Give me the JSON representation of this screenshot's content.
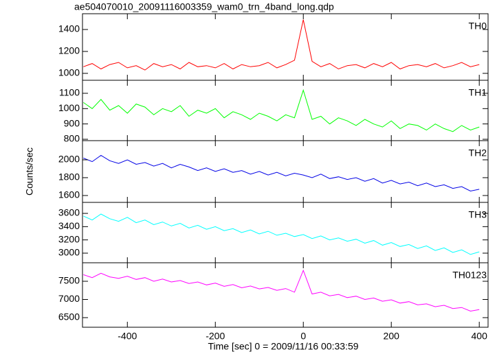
{
  "chart_data": [
    {
      "type": "line",
      "title": "ae504070010_20091116003359_wam0_trn_4band_long.qdp",
      "label": "TH0",
      "color": "#ff0000",
      "xlim": [
        -502,
        420
      ],
      "ylim": [
        937,
        1544
      ],
      "yticks": [
        1000,
        1200,
        1400
      ],
      "x": [
        -500,
        -480,
        -460,
        -440,
        -420,
        -400,
        -380,
        -360,
        -340,
        -320,
        -300,
        -280,
        -260,
        -240,
        -220,
        -200,
        -180,
        -160,
        -140,
        -120,
        -100,
        -80,
        -60,
        -40,
        -20,
        0,
        20,
        40,
        60,
        80,
        100,
        120,
        140,
        160,
        180,
        200,
        220,
        240,
        260,
        280,
        300,
        320,
        340,
        360,
        380,
        400
      ],
      "values": [
        1060,
        1090,
        1040,
        1080,
        1100,
        1050,
        1070,
        1030,
        1090,
        1060,
        1080,
        1040,
        1100,
        1060,
        1070,
        1050,
        1090,
        1040,
        1080,
        1060,
        1070,
        1100,
        1050,
        1080,
        1120,
        1490,
        1110,
        1060,
        1090,
        1040,
        1070,
        1080,
        1050,
        1090,
        1060,
        1100,
        1040,
        1070,
        1080,
        1060,
        1090,
        1050,
        1070,
        1100,
        1060,
        1080
      ]
    },
    {
      "type": "line",
      "label": "TH1",
      "color": "#00ff00",
      "xlim": [
        -502,
        420
      ],
      "ylim": [
        791,
        1185
      ],
      "yticks": [
        800,
        900,
        1000,
        1100
      ],
      "x": [
        -500,
        -480,
        -460,
        -440,
        -420,
        -400,
        -380,
        -360,
        -340,
        -320,
        -300,
        -280,
        -260,
        -240,
        -220,
        -200,
        -180,
        -160,
        -140,
        -120,
        -100,
        -80,
        -60,
        -40,
        -20,
        0,
        20,
        40,
        60,
        80,
        100,
        120,
        140,
        160,
        180,
        200,
        220,
        240,
        260,
        280,
        300,
        320,
        340,
        360,
        380,
        400
      ],
      "values": [
        1040,
        1000,
        1060,
        990,
        1020,
        970,
        1030,
        1010,
        960,
        1000,
        980,
        1020,
        950,
        990,
        970,
        1000,
        940,
        980,
        960,
        930,
        970,
        950,
        920,
        960,
        940,
        1120,
        930,
        950,
        900,
        940,
        920,
        890,
        930,
        900,
        880,
        920,
        870,
        900,
        890,
        860,
        900,
        870,
        850,
        890,
        860,
        880
      ]
    },
    {
      "type": "line",
      "label": "TH2",
      "ylabel": "Counts/sec",
      "color": "#0000e6",
      "xlim": [
        -502,
        420
      ],
      "ylim": [
        1523,
        2215
      ],
      "yticks": [
        1600,
        1800,
        2000
      ],
      "x": [
        -500,
        -480,
        -460,
        -440,
        -420,
        -400,
        -380,
        -360,
        -340,
        -320,
        -300,
        -280,
        -260,
        -240,
        -220,
        -200,
        -180,
        -160,
        -140,
        -120,
        -100,
        -80,
        -60,
        -40,
        -20,
        0,
        20,
        40,
        60,
        80,
        100,
        120,
        140,
        160,
        180,
        200,
        220,
        240,
        260,
        280,
        300,
        320,
        340,
        360,
        380,
        400
      ],
      "values": [
        2020,
        1980,
        2050,
        1990,
        1960,
        2000,
        1950,
        1970,
        1930,
        1960,
        1910,
        1950,
        1920,
        1880,
        1910,
        1870,
        1900,
        1860,
        1880,
        1840,
        1870,
        1830,
        1860,
        1820,
        1850,
        1830,
        1800,
        1840,
        1790,
        1810,
        1780,
        1800,
        1760,
        1790,
        1740,
        1770,
        1730,
        1750,
        1710,
        1740,
        1700,
        1720,
        1680,
        1700,
        1650,
        1670
      ]
    },
    {
      "type": "line",
      "label": "TH3",
      "color": "#00ffff",
      "xlim": [
        -502,
        420
      ],
      "ylim": [
        2855,
        3766
      ],
      "yticks": [
        3000,
        3200,
        3400,
        3600
      ],
      "x": [
        -500,
        -480,
        -460,
        -440,
        -420,
        -400,
        -380,
        -360,
        -340,
        -320,
        -300,
        -280,
        -260,
        -240,
        -220,
        -200,
        -180,
        -160,
        -140,
        -120,
        -100,
        -80,
        -60,
        -40,
        -20,
        0,
        20,
        40,
        60,
        80,
        100,
        120,
        140,
        160,
        180,
        200,
        220,
        240,
        260,
        280,
        300,
        320,
        340,
        360,
        380,
        400
      ],
      "values": [
        3560,
        3500,
        3590,
        3520,
        3480,
        3540,
        3460,
        3500,
        3430,
        3470,
        3410,
        3450,
        3380,
        3420,
        3360,
        3400,
        3340,
        3370,
        3310,
        3350,
        3290,
        3330,
        3270,
        3300,
        3250,
        3280,
        3220,
        3260,
        3200,
        3230,
        3180,
        3210,
        3150,
        3190,
        3120,
        3160,
        3100,
        3130,
        3070,
        3110,
        3040,
        3080,
        3010,
        3050,
        2980,
        3020
      ]
    },
    {
      "type": "line",
      "label": "TH0123",
      "xlabel": "Time [sec] 0 = 2009/11/16 00:33:59",
      "color": "#ff00ff",
      "xlim": [
        -502,
        420
      ],
      "ylim": [
        6236,
        8009
      ],
      "yticks": [
        6500,
        7000,
        7500
      ],
      "xticks": [
        -400,
        -200,
        0,
        200,
        400
      ],
      "x": [
        -500,
        -480,
        -460,
        -440,
        -420,
        -400,
        -380,
        -360,
        -340,
        -320,
        -300,
        -280,
        -260,
        -240,
        -220,
        -200,
        -180,
        -160,
        -140,
        -120,
        -100,
        -80,
        -60,
        -40,
        -20,
        0,
        20,
        40,
        60,
        80,
        100,
        120,
        140,
        160,
        180,
        200,
        220,
        240,
        260,
        280,
        300,
        320,
        340,
        360,
        380,
        400
      ],
      "values": [
        7680,
        7600,
        7720,
        7620,
        7580,
        7640,
        7550,
        7600,
        7500,
        7560,
        7480,
        7520,
        7440,
        7480,
        7400,
        7450,
        7360,
        7410,
        7320,
        7370,
        7290,
        7330,
        7250,
        7300,
        7200,
        7800,
        7150,
        7200,
        7100,
        7140,
        7050,
        7090,
        7000,
        7040,
        6950,
        6990,
        6900,
        6940,
        6850,
        6880,
        6800,
        6840,
        6750,
        6780,
        6680,
        6720
      ]
    }
  ]
}
